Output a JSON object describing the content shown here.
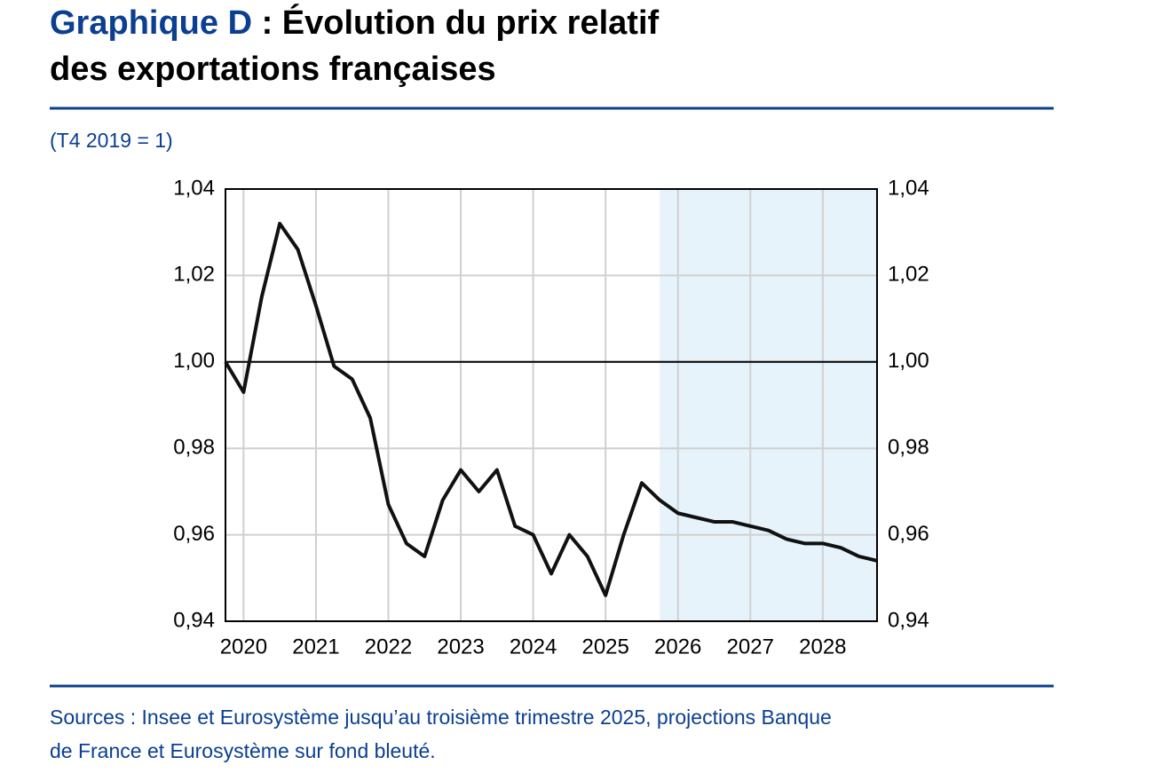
{
  "chart_data": {
    "type": "line",
    "title_prefix": "Graphique D",
    "title": [
      " : Évolution du prix relatif",
      "des exportations françaises"
    ],
    "subtitle": "(T4 2019 = 1)",
    "source": [
      "Sources : Insee et Eurosystème jusqu’au troisième trimestre 2025, projections Banque",
      "de France et Eurosystème sur fond bleuté."
    ],
    "categories": [
      null,
      "2020",
      null,
      null,
      null,
      "2021",
      null,
      null,
      null,
      "2022",
      null,
      null,
      null,
      "2023",
      null,
      null,
      null,
      "2024",
      null,
      null,
      null,
      "2025",
      null,
      null,
      null,
      "2026",
      null,
      null,
      null,
      "2027",
      null,
      null,
      null,
      "2028",
      null,
      null,
      null
    ],
    "series": [
      {
        "name": "Prix relatif des exportations",
        "color": "#111111",
        "values": [
          1.0,
          0.993,
          1.015,
          1.032,
          1.026,
          1.013,
          0.999,
          0.996,
          0.987,
          0.967,
          0.958,
          0.955,
          0.968,
          0.975,
          0.97,
          0.975,
          0.962,
          0.96,
          0.951,
          0.96,
          0.955,
          0.946,
          0.96,
          0.972,
          0.968,
          0.965,
          0.964,
          0.963,
          0.963,
          0.962,
          0.961,
          0.959,
          0.958,
          0.958,
          0.957,
          0.955,
          0.954
        ]
      }
    ],
    "ylim": [
      0.94,
      1.04
    ],
    "yticks": [
      {
        "value": 0.94,
        "label": "0,94"
      },
      {
        "value": 0.96,
        "label": "0,96"
      },
      {
        "value": 0.98,
        "label": "0,98"
      },
      {
        "value": 1.0,
        "label": "1,00"
      },
      {
        "value": 1.02,
        "label": "1,02"
      },
      {
        "value": 1.04,
        "label": "1,04"
      }
    ],
    "reference_line": 1.0,
    "shaded_from_index": 24,
    "shade_color": "#e6f3fb",
    "grid": true
  }
}
